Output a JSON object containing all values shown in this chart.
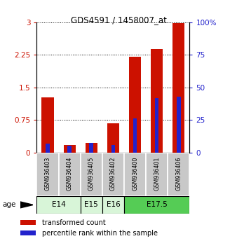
{
  "title": "GDS4591 / 1458007_at",
  "samples": [
    "GSM936403",
    "GSM936404",
    "GSM936405",
    "GSM936402",
    "GSM936400",
    "GSM936401",
    "GSM936406"
  ],
  "transformed_count": [
    1.27,
    0.18,
    0.22,
    0.68,
    2.2,
    2.38,
    2.98
  ],
  "percentile_rank": [
    7.0,
    5.0,
    7.5,
    5.5,
    26.0,
    42.0,
    43.0
  ],
  "age_groups": [
    {
      "label": "E14",
      "start": 0,
      "end": 2,
      "color": "#d8f5d8"
    },
    {
      "label": "E15",
      "start": 2,
      "end": 3,
      "color": "#d8f5d8"
    },
    {
      "label": "E16",
      "start": 3,
      "end": 4,
      "color": "#d8f5d8"
    },
    {
      "label": "E17.5",
      "start": 4,
      "end": 7,
      "color": "#55cc55"
    }
  ],
  "ylim_left": [
    0,
    3
  ],
  "ylim_right": [
    0,
    100
  ],
  "yticks_left": [
    0,
    0.75,
    1.5,
    2.25,
    3
  ],
  "yticks_right": [
    0,
    25,
    50,
    75,
    100
  ],
  "ytick_labels_right": [
    "0",
    "25",
    "50",
    "75",
    "100%"
  ],
  "bar_color_red": "#cc1100",
  "bar_color_blue": "#2222cc",
  "red_bar_width": 0.55,
  "blue_bar_width": 0.18,
  "legend_red_label": "transformed count",
  "legend_blue_label": "percentile rank within the sample",
  "age_label": "age",
  "sample_bg_color": "#c8c8c8"
}
